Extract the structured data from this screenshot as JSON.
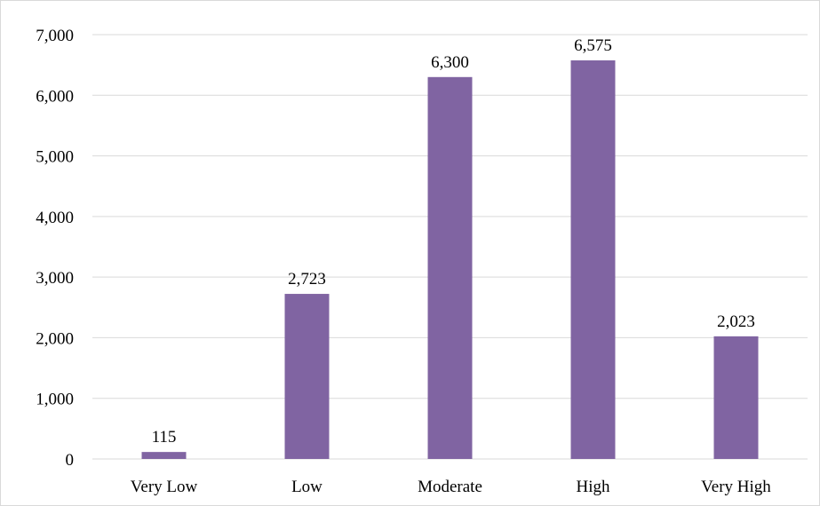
{
  "chart_data": {
    "type": "bar",
    "categories": [
      "Very Low",
      "Low",
      "Moderate",
      "High",
      "Very High"
    ],
    "values": [
      115,
      2723,
      6300,
      6575,
      2023
    ],
    "value_labels": [
      "115",
      "2,723",
      "6,300",
      "6,575",
      "2,023"
    ],
    "ylim": [
      0,
      7000
    ],
    "y_ticks": [
      0,
      1000,
      2000,
      3000,
      4000,
      5000,
      6000,
      7000
    ],
    "y_tick_labels": [
      "0",
      "1,000",
      "2,000",
      "3,000",
      "4,000",
      "5,000",
      "6,000",
      "7,000"
    ],
    "bar_color": "#8064a2",
    "grid": true,
    "legend": "none",
    "title": "",
    "xlabel": "",
    "ylabel": ""
  }
}
